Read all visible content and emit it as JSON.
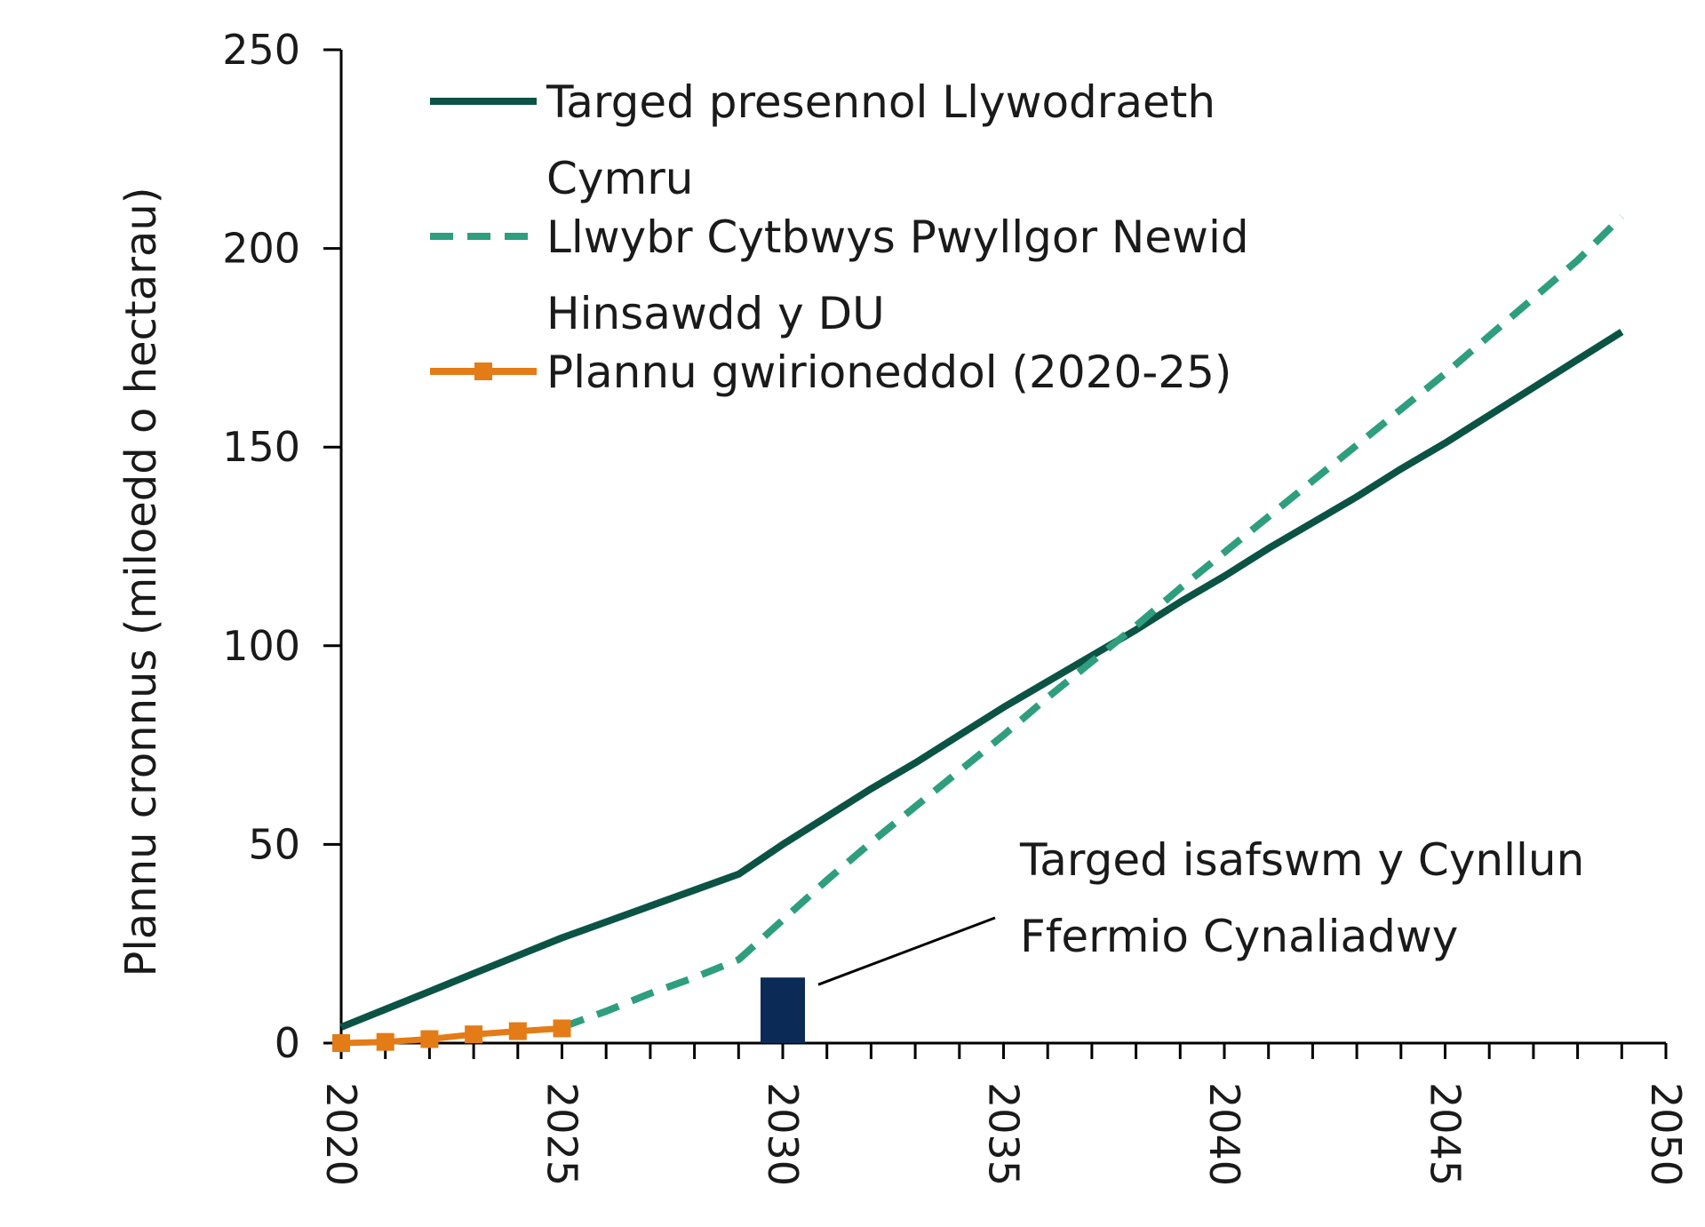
{
  "chart_data": {
    "type": "line",
    "title": "",
    "xlabel": "",
    "ylabel": "Plannu cronnus (miloedd o hectarau)",
    "xlim": [
      2020,
      2050
    ],
    "ylim": [
      0,
      250
    ],
    "x_ticks": [
      "2020",
      "2025",
      "2030",
      "2035",
      "2040",
      "2045",
      "2050"
    ],
    "y_ticks": [
      "0",
      "50",
      "100",
      "150",
      "200",
      "250"
    ],
    "grid": false,
    "legend_position": "top-left",
    "series": [
      {
        "name": "Targed presennol Llywodraeth Cymru",
        "legend_lines": [
          "Targed presennol Llywodraeth",
          "Cymru"
        ],
        "style": "solid",
        "color": "#0b5345",
        "x": [
          2020,
          2021,
          2022,
          2023,
          2024,
          2025,
          2026,
          2027,
          2028,
          2029,
          2030,
          2031,
          2032,
          2033,
          2034,
          2035,
          2036,
          2037,
          2038,
          2039,
          2040,
          2041,
          2042,
          2043,
          2044,
          2045,
          2046,
          2047,
          2048,
          2049
        ],
        "values": [
          4,
          8.5,
          13,
          17.5,
          22,
          26.5,
          30.5,
          34.5,
          38.5,
          42.5,
          50,
          57,
          64,
          70.5,
          77.5,
          84.5,
          91,
          97.5,
          104,
          111,
          117.5,
          124.5,
          131,
          137.5,
          144.5,
          151,
          158,
          165,
          172,
          179
        ]
      },
      {
        "name": "Llwybr Cytbwys Pwyllgor Newid Hinsawdd y DU",
        "legend_lines": [
          "Llwybr Cytbwys Pwyllgor Newid",
          "Hinsawdd y DU"
        ],
        "style": "dashed",
        "color": "#2e9e7e",
        "x": [
          2025,
          2026,
          2027,
          2028,
          2029,
          2030,
          2031,
          2032,
          2033,
          2034,
          2035,
          2036,
          2037,
          2038,
          2039,
          2040,
          2041,
          2042,
          2043,
          2044,
          2045,
          2046,
          2047,
          2048,
          2049
        ],
        "values": [
          4,
          8,
          12.5,
          16.5,
          21,
          31,
          41,
          50.5,
          59.5,
          68.5,
          77.5,
          87,
          96,
          105,
          114.5,
          123.5,
          132.5,
          141.5,
          150.5,
          159.5,
          168.5,
          178,
          187.5,
          197,
          208
        ]
      },
      {
        "name": "Plannu gwirioneddol (2020-25)",
        "legend_lines": [
          "Plannu gwirioneddol (2020-25)"
        ],
        "style": "solid-square-markers",
        "color": "#e37c17",
        "x": [
          2020,
          2021,
          2022,
          2023,
          2024,
          2025
        ],
        "values": [
          0,
          0.3,
          1,
          2.2,
          3,
          3.7
        ]
      }
    ],
    "bars": [
      {
        "x": 2030,
        "value": 16.5,
        "color": "#0b2a55"
      }
    ],
    "annotation": {
      "lines": [
        "Targed isafswm y Cynllun",
        "Ffermio Cynaliadwy"
      ],
      "points_to_x": 2030,
      "points_to_value": 16.5
    }
  }
}
